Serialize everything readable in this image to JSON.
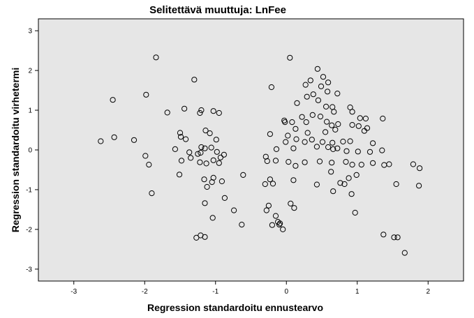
{
  "chart_data": {
    "type": "scatter",
    "title": "Selitettävä muuttuja: LnFee",
    "xlabel": "Regression standardoitu ennustearvo",
    "ylabel": "Regression standardoitu virhetermi",
    "xlim": [
      -3.5,
      2.5
    ],
    "ylim": [
      -3.3,
      3.3
    ],
    "xticks": [
      -3,
      -2,
      -1,
      0,
      1,
      2
    ],
    "yticks": [
      -3,
      -2,
      -1,
      0,
      1,
      2,
      3
    ],
    "grid": false,
    "legend": "none",
    "colors": {
      "plot_background": "#e6e6e6",
      "marker_stroke": "#000000",
      "page_background": "#ffffff"
    },
    "points": [
      [
        -1.84,
        2.33
      ],
      [
        -1.3,
        1.77
      ],
      [
        -2.45,
        1.26
      ],
      [
        -1.98,
        1.39
      ],
      [
        -1.68,
        0.94
      ],
      [
        -1.44,
        1.04
      ],
      [
        -1.22,
        0.93
      ],
      [
        -1.2,
        1.0
      ],
      [
        -1.03,
        0.98
      ],
      [
        -0.95,
        0.93
      ],
      [
        -2.62,
        0.22
      ],
      [
        -2.43,
        0.32
      ],
      [
        -2.15,
        0.25
      ],
      [
        -1.5,
        0.43
      ],
      [
        -1.49,
        0.33
      ],
      [
        -1.42,
        0.27
      ],
      [
        -1.14,
        0.49
      ],
      [
        -1.08,
        0.42
      ],
      [
        -0.99,
        0.26
      ],
      [
        -1.57,
        0.02
      ],
      [
        -1.37,
        -0.06
      ],
      [
        -1.2,
        0.07
      ],
      [
        -1.15,
        0.04
      ],
      [
        -1.25,
        -0.1
      ],
      [
        -1.21,
        -0.07
      ],
      [
        -1.06,
        0.06
      ],
      [
        -0.98,
        -0.05
      ],
      [
        -0.88,
        -0.12
      ],
      [
        -0.93,
        -0.19
      ],
      [
        -1.99,
        -0.15
      ],
      [
        -1.94,
        -0.37
      ],
      [
        -1.48,
        -0.27
      ],
      [
        -1.35,
        -0.2
      ],
      [
        -1.22,
        -0.31
      ],
      [
        -1.13,
        -0.34
      ],
      [
        -1.03,
        -0.26
      ],
      [
        -0.95,
        -0.33
      ],
      [
        -1.9,
        -1.09
      ],
      [
        -1.51,
        -0.62
      ],
      [
        -1.16,
        -0.74
      ],
      [
        -1.12,
        -0.93
      ],
      [
        -1.05,
        -0.81
      ],
      [
        -1.03,
        -0.7
      ],
      [
        -0.91,
        -0.79
      ],
      [
        -0.87,
        -1.21
      ],
      [
        -1.15,
        -1.34
      ],
      [
        -1.04,
        -1.71
      ],
      [
        -0.74,
        -1.52
      ],
      [
        -0.63,
        -1.88
      ],
      [
        -0.61,
        -0.63
      ],
      [
        -1.27,
        -2.21
      ],
      [
        -1.21,
        -2.15
      ],
      [
        -1.15,
        -2.19
      ],
      [
        0.05,
        2.32
      ],
      [
        -0.21,
        1.58
      ],
      [
        0.44,
        2.04
      ],
      [
        0.52,
        1.84
      ],
      [
        0.59,
        1.7
      ],
      [
        0.34,
        1.75
      ],
      [
        0.49,
        1.6
      ],
      [
        0.27,
        1.64
      ],
      [
        0.58,
        1.47
      ],
      [
        0.72,
        1.42
      ],
      [
        0.29,
        1.34
      ],
      [
        0.38,
        1.4
      ],
      [
        0.15,
        1.18
      ],
      [
        0.45,
        1.25
      ],
      [
        0.56,
        1.09
      ],
      [
        0.65,
        1.08
      ],
      [
        0.9,
        1.07
      ],
      [
        0.93,
        0.96
      ],
      [
        0.67,
        0.96
      ],
      [
        0.37,
        0.88
      ],
      [
        0.48,
        0.84
      ],
      [
        0.22,
        0.83
      ],
      [
        1.04,
        0.8
      ],
      [
        1.12,
        0.79
      ],
      [
        1.36,
        0.79
      ],
      [
        -0.03,
        0.74
      ],
      [
        -0.02,
        0.7
      ],
      [
        0.08,
        0.7
      ],
      [
        0.28,
        0.7
      ],
      [
        0.57,
        0.71
      ],
      [
        0.64,
        0.62
      ],
      [
        0.73,
        0.65
      ],
      [
        0.93,
        0.63
      ],
      [
        1.02,
        0.6
      ],
      [
        1.14,
        0.55
      ],
      [
        0.13,
        0.53
      ],
      [
        0.3,
        0.43
      ],
      [
        0.55,
        0.45
      ],
      [
        0.69,
        0.51
      ],
      [
        1.1,
        0.48
      ],
      [
        -0.23,
        0.4
      ],
      [
        0.02,
        0.36
      ],
      [
        0.14,
        0.27
      ],
      [
        0.26,
        0.2
      ],
      [
        0.36,
        0.26
      ],
      [
        0.51,
        0.2
      ],
      [
        0.65,
        0.18
      ],
      [
        0.8,
        0.21
      ],
      [
        0.9,
        0.22
      ],
      [
        1.22,
        0.17
      ],
      [
        -0.01,
        0.2
      ],
      [
        -0.14,
        0.02
      ],
      [
        0.1,
        0.04
      ],
      [
        0.43,
        0.08
      ],
      [
        0.59,
        0.07
      ],
      [
        0.66,
        0.02
      ],
      [
        0.72,
        0.04
      ],
      [
        0.85,
        -0.03
      ],
      [
        1.01,
        -0.04
      ],
      [
        1.18,
        -0.05
      ],
      [
        1.35,
        -0.01
      ],
      [
        -0.29,
        -0.17
      ],
      [
        -0.27,
        -0.28
      ],
      [
        -0.15,
        -0.27
      ],
      [
        0.03,
        -0.3
      ],
      [
        0.13,
        -0.4
      ],
      [
        0.26,
        -0.31
      ],
      [
        0.47,
        -0.29
      ],
      [
        0.64,
        -0.32
      ],
      [
        0.84,
        -0.3
      ],
      [
        0.93,
        -0.37
      ],
      [
        1.06,
        -0.37
      ],
      [
        1.22,
        -0.33
      ],
      [
        1.38,
        -0.38
      ],
      [
        1.45,
        -0.36
      ],
      [
        1.79,
        -0.36
      ],
      [
        1.88,
        -0.46
      ],
      [
        -0.23,
        -0.74
      ],
      [
        -0.19,
        -0.85
      ],
      [
        -0.3,
        -0.86
      ],
      [
        0.1,
        -0.76
      ],
      [
        0.43,
        -0.87
      ],
      [
        0.63,
        -0.55
      ],
      [
        0.76,
        -0.83
      ],
      [
        0.82,
        -0.86
      ],
      [
        0.88,
        -0.71
      ],
      [
        0.99,
        -0.63
      ],
      [
        0.66,
        -1.04
      ],
      [
        0.92,
        -1.11
      ],
      [
        1.55,
        -0.86
      ],
      [
        1.87,
        -0.9
      ],
      [
        -0.28,
        -1.52
      ],
      [
        -0.25,
        -1.4
      ],
      [
        -0.2,
        -1.89
      ],
      [
        -0.12,
        -1.81
      ],
      [
        -0.1,
        -1.88
      ],
      [
        -0.09,
        -1.85
      ],
      [
        -0.05,
        -2.0
      ],
      [
        0.06,
        -1.35
      ],
      [
        0.11,
        -1.46
      ],
      [
        0.97,
        -1.58
      ],
      [
        1.37,
        -2.13
      ],
      [
        1.52,
        -2.2
      ],
      [
        1.57,
        -2.2
      ],
      [
        1.67,
        -2.59
      ],
      [
        -0.15,
        -1.66
      ]
    ]
  }
}
